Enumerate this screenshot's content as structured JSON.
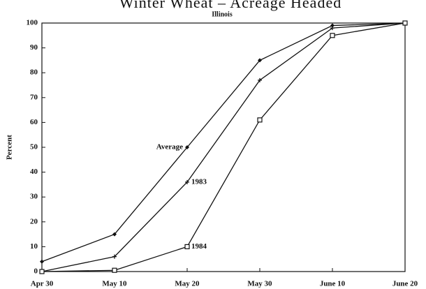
{
  "chart_data": {
    "type": "line",
    "title": "Winter Wheat – Acreage Headed",
    "subtitle": "Illinois",
    "y_label": "Percent",
    "categories": [
      "Apr 30",
      "May 10",
      "May 20",
      "May 30",
      "June 10",
      "June 20"
    ],
    "series": [
      {
        "name": "Average",
        "color": "#111111",
        "values": [
          4,
          15,
          50,
          85,
          99,
          100
        ]
      },
      {
        "name": "1983",
        "color": "#111111",
        "values": [
          0,
          6,
          36,
          77,
          98,
          100
        ]
      },
      {
        "name": "1984",
        "color": "#111111",
        "values": [
          0,
          0.5,
          10,
          61,
          95,
          100
        ]
      }
    ],
    "ylim": [
      0,
      100
    ],
    "yticks": [
      0,
      10,
      20,
      30,
      40,
      50,
      60,
      70,
      80,
      90,
      100
    ],
    "grid": false
  }
}
